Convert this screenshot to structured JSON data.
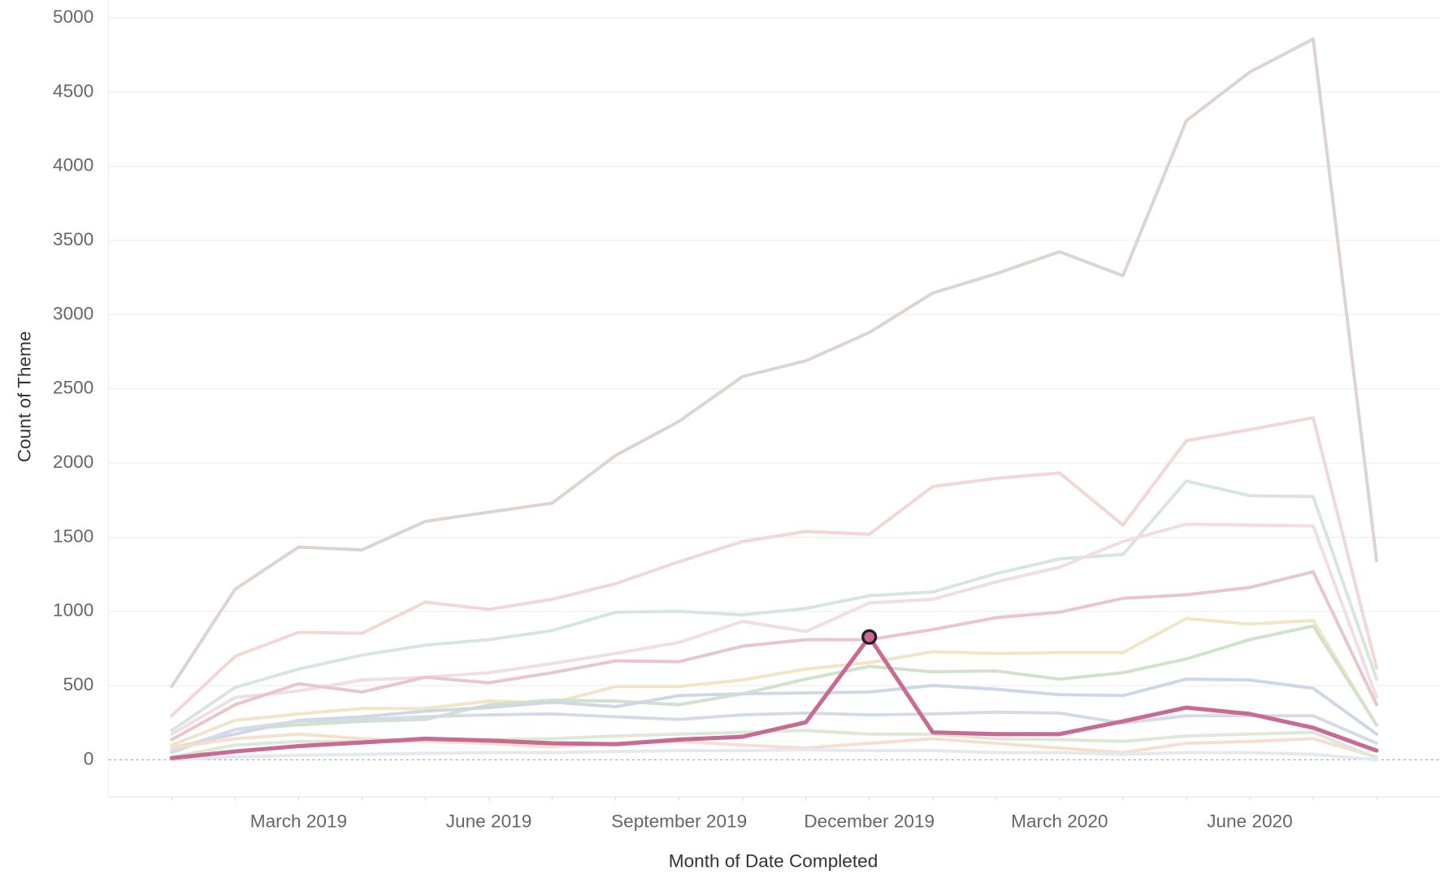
{
  "chart_data": {
    "type": "line",
    "y_label": "Count of Theme",
    "x_label": "Month of Date Completed",
    "categories": [
      null,
      null,
      "March 2019",
      null,
      null,
      "June 2019",
      null,
      null,
      "September 2019",
      null,
      null,
      "December 2019",
      null,
      null,
      "March 2020",
      null,
      null,
      "June 2020",
      null,
      null
    ],
    "ylim": [
      -250,
      5120
    ],
    "yticks": [
      0,
      500,
      1000,
      1500,
      2000,
      2500,
      3000,
      3500,
      4000,
      4500,
      5000
    ],
    "grid": true,
    "highlight": {
      "series": 12,
      "index": 11
    },
    "series": [
      {
        "color": "#ddd4cf",
        "values": [
          494,
          1150,
          1434,
          1415,
          1607,
          1669,
          1730,
          2052,
          2281,
          2583,
          2689,
          2880,
          3146,
          3276,
          3424,
          3263,
          4308,
          4635,
          4858,
          1341
        ]
      },
      {
        "color": "#f3d6d6",
        "values": [
          297,
          698,
          859,
          853,
          1063,
          1014,
          1082,
          1187,
          1335,
          1471,
          1539,
          1520,
          1842,
          1897,
          1934,
          1582,
          2151,
          2225,
          2305,
          618
        ]
      },
      {
        "color": "#d7e5df",
        "values": [
          198,
          488,
          612,
          705,
          773,
          810,
          871,
          995,
          1001,
          977,
          1020,
          1106,
          1131,
          1255,
          1354,
          1384,
          1879,
          1780,
          1774,
          544
        ]
      },
      {
        "color": "#f1dde5",
        "values": [
          173,
          420,
          464,
          538,
          556,
          587,
          649,
          717,
          791,
          933,
          865,
          1057,
          1082,
          1199,
          1298,
          1471,
          1588,
          1582,
          1576,
          420
        ]
      },
      {
        "color": "#e8c6c9",
        "values": [
          136,
          371,
          513,
          457,
          556,
          519,
          587,
          667,
          661,
          766,
          810,
          810,
          878,
          958,
          995,
          1088,
          1112,
          1162,
          1267,
          371
        ]
      },
      {
        "color": "#f1e5c8",
        "values": [
          99,
          266,
          309,
          346,
          346,
          396,
          383,
          494,
          494,
          538,
          612,
          655,
          729,
          717,
          723,
          723,
          952,
          915,
          939,
          235
        ]
      },
      {
        "color": "#d1e2cb",
        "values": [
          49,
          204,
          235,
          260,
          272,
          371,
          402,
          396,
          371,
          445,
          544,
          630,
          593,
          599,
          544,
          587,
          680,
          810,
          902,
          235
        ]
      },
      {
        "color": "#ced7e5",
        "values": [
          80,
          173,
          266,
          290,
          328,
          352,
          389,
          358,
          433,
          445,
          451,
          457,
          501,
          476,
          439,
          433,
          544,
          538,
          482,
          173
        ]
      },
      {
        "color": "#d4dbe6",
        "values": [
          62,
          204,
          260,
          272,
          290,
          303,
          309,
          290,
          272,
          303,
          315,
          303,
          309,
          321,
          315,
          247,
          297,
          297,
          297,
          111
        ]
      },
      {
        "color": "#f6dfcf",
        "values": [
          80,
          142,
          173,
          142,
          124,
          111,
          87,
          111,
          124,
          99,
          80,
          111,
          142,
          111,
          80,
          49,
          111,
          124,
          142,
          19
        ]
      },
      {
        "color": "#dbe9d6",
        "values": [
          19,
          99,
          124,
          124,
          124,
          136,
          142,
          161,
          173,
          185,
          198,
          173,
          173,
          142,
          136,
          124,
          161,
          173,
          185,
          12
        ]
      },
      {
        "color": "#e4e9ef",
        "values": [
          0,
          19,
          31,
          37,
          43,
          49,
          49,
          56,
          62,
          62,
          68,
          62,
          62,
          49,
          49,
          37,
          49,
          49,
          37,
          0
        ]
      },
      {
        "color": "#c86b94",
        "values": [
          12,
          56,
          93,
          117,
          142,
          130,
          111,
          105,
          136,
          155,
          253,
          828,
          185,
          173,
          173,
          260,
          352,
          309,
          216,
          62
        ]
      }
    ]
  }
}
